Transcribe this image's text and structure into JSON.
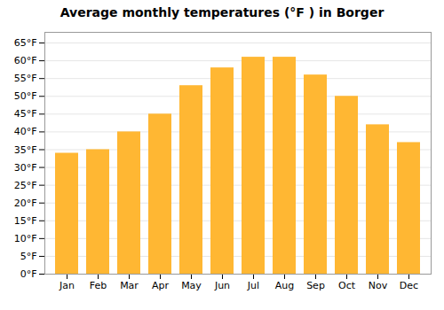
{
  "chart_data": {
    "type": "bar",
    "title": "Average monthly temperatures (°F ) in Borger",
    "categories": [
      "Jan",
      "Feb",
      "Mar",
      "Apr",
      "May",
      "Jun",
      "Jul",
      "Aug",
      "Sep",
      "Oct",
      "Nov",
      "Dec"
    ],
    "values": [
      34,
      35,
      40,
      45,
      53,
      58,
      61,
      61,
      56,
      50,
      42,
      37
    ],
    "color": "#FFB733",
    "ylim": [
      0,
      68
    ],
    "yticks": [
      {
        "value": 0,
        "label": "0°F"
      },
      {
        "value": 5,
        "label": "5°F"
      },
      {
        "value": 10,
        "label": "10°F"
      },
      {
        "value": 15,
        "label": "15°F"
      },
      {
        "value": 20,
        "label": "20°F"
      },
      {
        "value": 25,
        "label": "25°F"
      },
      {
        "value": 30,
        "label": "30°F"
      },
      {
        "value": 35,
        "label": "35°F"
      },
      {
        "value": 40,
        "label": "40°F"
      },
      {
        "value": 45,
        "label": "45°F"
      },
      {
        "value": 50,
        "label": "50°F"
      },
      {
        "value": 55,
        "label": "55°F"
      },
      {
        "value": 60,
        "label": "60°F"
      },
      {
        "value": 65,
        "label": "65°F"
      }
    ],
    "grid": true
  }
}
